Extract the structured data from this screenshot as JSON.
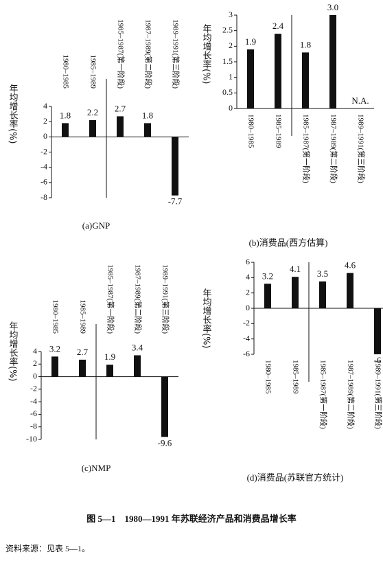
{
  "chart_data": [
    {
      "type": "bar",
      "title": "(a)GNP",
      "y_label": "年均增长率(%)",
      "categories": [
        "1980–1985",
        "1985–1989",
        "1985–1987(第一阶段)",
        "1987–1989(第二阶段)",
        "1989–1991(第三阶段)"
      ],
      "values": [
        1.8,
        2.2,
        2.7,
        1.8,
        -7.7
      ],
      "color": "#111111",
      "ylim": [
        -8,
        4
      ],
      "yticks": [
        -8,
        -6,
        -4,
        -2,
        0,
        2,
        4
      ]
    },
    {
      "type": "bar",
      "title": "(b)消费品(西方估算)",
      "y_label": "年均增长率(%)",
      "categories": [
        "1980–1985",
        "1985–1989",
        "1985–1987(第一阶段)",
        "1987–1989(第二阶段)",
        "1989–1991(第三阶段)"
      ],
      "values": [
        1.9,
        2.4,
        1.8,
        3.0,
        null
      ],
      "value_labels": [
        "1.9",
        "2.4",
        "1.8",
        "3.0",
        "N.A."
      ],
      "color": "#111111",
      "ylim": [
        0,
        3
      ],
      "yticks": [
        0,
        0.5,
        1,
        1.5,
        2,
        2.5,
        3
      ]
    },
    {
      "type": "bar",
      "title": "(c)NMP",
      "y_label": "年均增长率(%)",
      "categories": [
        "1980–1985",
        "1985–1989",
        "1985–1987(第一阶段)",
        "1987–1989(第二阶段)",
        "1989–1991(第三阶段)"
      ],
      "values": [
        3.2,
        2.7,
        1.9,
        3.4,
        -9.6
      ],
      "color": "#111111",
      "ylim": [
        -10,
        4
      ],
      "yticks": [
        -10,
        -8,
        -6,
        -4,
        -2,
        0,
        2,
        4
      ]
    },
    {
      "type": "bar",
      "title": "(d)消费品(苏联官方统计)",
      "y_label": "年均增长率(%)",
      "categories": [
        "1980–1985",
        "1985–1989",
        "1985–1987(第一阶段)",
        "1987–1989(第二阶段)",
        "1989–1991(第三阶段)"
      ],
      "values": [
        3.2,
        4.1,
        3.5,
        4.6,
        -6
      ],
      "color": "#111111",
      "ylim": [
        -6,
        6
      ],
      "yticks": [
        -6,
        -4,
        -2,
        0,
        2,
        4,
        6
      ]
    }
  ],
  "caption": "图 5—1　1980—1991 年苏联经济产品和消费品增长率",
  "source": "资料来源：见表 5—1。"
}
